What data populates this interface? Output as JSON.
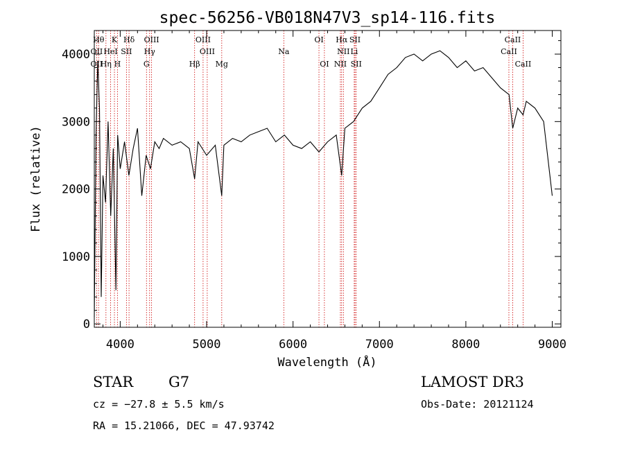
{
  "chart_data": {
    "type": "line",
    "title": "spec-56256-VB018N47V3_sp14-116.fits",
    "xlabel": "Wavelength (Å)",
    "ylabel": "Flux (relative)",
    "xlim": [
      3700,
      9100
    ],
    "ylim": [
      -50,
      4350
    ],
    "x_ticks": [
      4000,
      5000,
      6000,
      7000,
      8000,
      9000
    ],
    "y_ticks": [
      0,
      1000,
      2000,
      3000,
      4000
    ],
    "grid": false,
    "legend": "none",
    "series": [
      {
        "color": "#000000",
        "x": [
          3700,
          3720,
          3740,
          3760,
          3780,
          3800,
          3830,
          3860,
          3890,
          3920,
          3950,
          3970,
          4000,
          4050,
          4100,
          4150,
          4200,
          4250,
          4300,
          4350,
          4400,
          4450,
          4500,
          4600,
          4700,
          4800,
          4861,
          4900,
          5000,
          5100,
          5175,
          5200,
          5300,
          5400,
          5500,
          5600,
          5700,
          5800,
          5900,
          6000,
          6100,
          6200,
          6300,
          6400,
          6500,
          6563,
          6600,
          6700,
          6800,
          6900,
          7000,
          7100,
          7200,
          7300,
          7400,
          7500,
          7600,
          7700,
          7800,
          7900,
          8000,
          8100,
          8200,
          8300,
          8400,
          8500,
          8542,
          8600,
          8662,
          8700,
          8800,
          8900,
          9000
        ],
        "y": [
          100,
          2800,
          3900,
          3200,
          400,
          2200,
          1800,
          3000,
          1600,
          2600,
          500,
          2800,
          2300,
          2700,
          2200,
          2600,
          2900,
          1900,
          2500,
          2300,
          2700,
          2600,
          2750,
          2650,
          2700,
          2600,
          2150,
          2700,
          2500,
          2650,
          1900,
          2650,
          2750,
          2700,
          2800,
          2850,
          2900,
          2700,
          2800,
          2650,
          2600,
          2700,
          2550,
          2700,
          2800,
          2200,
          2900,
          3000,
          3200,
          3300,
          3500,
          3700,
          3800,
          3950,
          4000,
          3900,
          4000,
          4050,
          3950,
          3800,
          3900,
          3750,
          3800,
          3650,
          3500,
          3400,
          2900,
          3200,
          3100,
          3300,
          3200,
          3000,
          1900
        ]
      }
    ],
    "line_markers": [
      {
        "label": "Hθ",
        "wave": 3750,
        "row": 1
      },
      {
        "label": "K",
        "wave": 3933,
        "row": 1
      },
      {
        "label": "Hδ",
        "wave": 4102,
        "row": 1
      },
      {
        "label": "OIII",
        "wave": 4363,
        "row": 1
      },
      {
        "label": "OIII",
        "wave": 4959,
        "row": 1
      },
      {
        "label": "OI",
        "wave": 6300,
        "row": 1
      },
      {
        "label": "Hα",
        "wave": 6563,
        "row": 1
      },
      {
        "label": "SII",
        "wave": 6717,
        "row": 1
      },
      {
        "label": "CaII",
        "wave": 8542,
        "row": 1
      },
      {
        "label": "OII",
        "wave": 3727,
        "row": 2
      },
      {
        "label": "HeI",
        "wave": 3889,
        "row": 2
      },
      {
        "label": "SII",
        "wave": 4072,
        "row": 2
      },
      {
        "label": "Hγ",
        "wave": 4340,
        "row": 2
      },
      {
        "label": "OIII",
        "wave": 5007,
        "row": 2
      },
      {
        "label": "Na",
        "wave": 5893,
        "row": 2
      },
      {
        "label": "NII",
        "wave": 6583,
        "row": 2
      },
      {
        "label": "Li",
        "wave": 6708,
        "row": 2
      },
      {
        "label": "CaII",
        "wave": 8498,
        "row": 2
      },
      {
        "label": "OII",
        "wave": 3727,
        "row": 3
      },
      {
        "label": "Hη",
        "wave": 3835,
        "row": 3
      },
      {
        "label": "H",
        "wave": 3968,
        "row": 3
      },
      {
        "label": "G",
        "wave": 4304,
        "row": 3
      },
      {
        "label": "Hβ",
        "wave": 4861,
        "row": 3
      },
      {
        "label": "Mg",
        "wave": 5175,
        "row": 3
      },
      {
        "label": "OI",
        "wave": 6363,
        "row": 3
      },
      {
        "label": "NII",
        "wave": 6548,
        "row": 3
      },
      {
        "label": "SII",
        "wave": 6731,
        "row": 3
      },
      {
        "label": "CaII",
        "wave": 8662,
        "row": 3
      }
    ]
  },
  "info": {
    "object_class": "STAR",
    "subclass": "G7",
    "survey": "LAMOST DR3",
    "cz": "cz = −27.8 ± 5.5 km/s",
    "obs_date": "Obs-Date: 20121124",
    "coords": "RA =  15.21066, DEC =  47.93742"
  }
}
